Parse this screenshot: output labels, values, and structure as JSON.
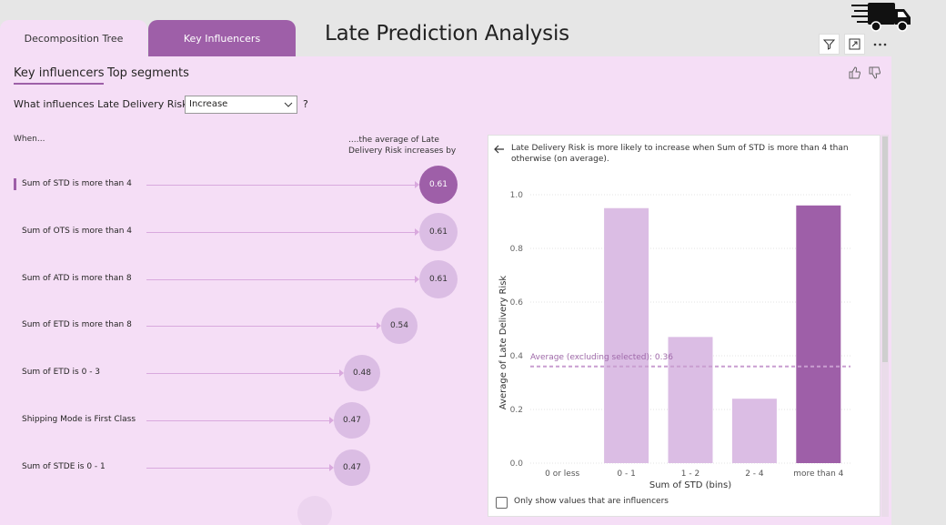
{
  "tabs": [
    {
      "label": "Decomposition Tree",
      "active": true
    },
    {
      "label": "Key Influencers",
      "active": false
    }
  ],
  "page_title": "Late Prediction Analysis",
  "logo_icon": "truck-icon",
  "toolbar": {
    "filter_icon": "filter-icon",
    "focus_icon": "focus-mode-icon",
    "more_icon": "more-options-icon"
  },
  "subtabs": {
    "key_influencers": "Key influencers",
    "top_segments": "Top segments"
  },
  "question": {
    "prefix": "What influences Late Delivery Risk to",
    "selected": "Increase",
    "suffix": "?"
  },
  "headers": {
    "when": "When...",
    "avg": "....the average of Late Delivery Risk increases by"
  },
  "influencers": [
    {
      "label": "Sum of STD is more than 4",
      "value": "0.61",
      "selected": true
    },
    {
      "label": "Sum of OTS is more than 4",
      "value": "0.61",
      "selected": false
    },
    {
      "label": "Sum of ATD is more than 8",
      "value": "0.61",
      "selected": false
    },
    {
      "label": "Sum of ETD is more than 8",
      "value": "0.54",
      "selected": false
    },
    {
      "label": "Sum of ETD is 0 - 3",
      "value": "0.48",
      "selected": false
    },
    {
      "label": "Shipping Mode is First Class",
      "value": "0.47",
      "selected": false
    },
    {
      "label": "Sum of STDE is 0 - 1",
      "value": "0.47",
      "selected": false
    }
  ],
  "detail": {
    "description": "Late Delivery Risk is more likely to increase when Sum of STD is more than 4 than otherwise (on average).",
    "checkbox_label": "Only show values that are influencers"
  },
  "colors": {
    "accent": "#9e5fa8",
    "light_bar": "#dbbde4",
    "panel": "#f5def6"
  },
  "chart_data": {
    "type": "bar",
    "categories": [
      "0 or less",
      "0 - 1",
      "1 - 2",
      "2 - 4",
      "more than 4"
    ],
    "values": [
      0,
      0.95,
      0.47,
      0.24,
      0.96
    ],
    "highlighted": "more than 4",
    "ylim": [
      0,
      1.0
    ],
    "yticks": [
      "0.0",
      "0.2",
      "0.4",
      "0.6",
      "0.8",
      "1.0"
    ],
    "xlabel": "Sum of STD (bins)",
    "ylabel": "Average of Late Delivery Risk",
    "reference_line": {
      "label": "Average (excluding selected): 0.36",
      "value": 0.36
    },
    "grid": true
  }
}
